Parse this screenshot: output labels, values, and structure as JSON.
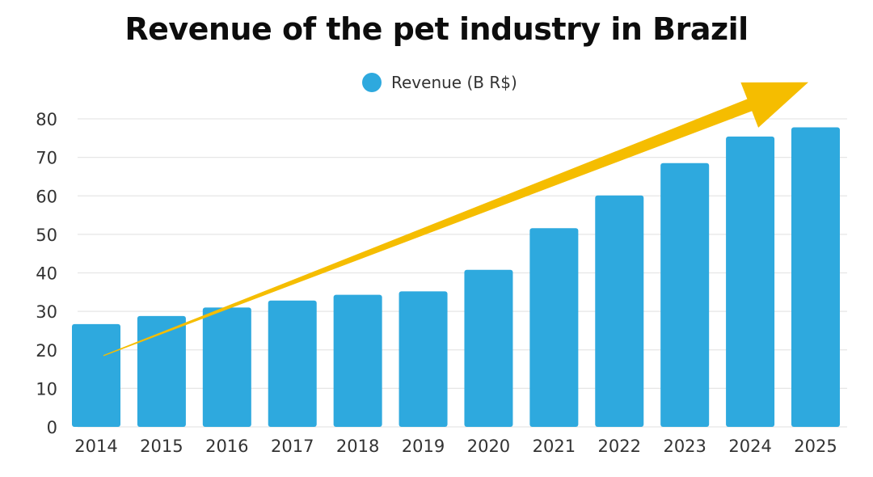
{
  "chart_data": {
    "type": "bar",
    "title": "Revenue of the pet industry in Brazil",
    "categories": [
      "2014",
      "2015",
      "2016",
      "2017",
      "2018",
      "2019",
      "2020",
      "2021",
      "2022",
      "2023",
      "2024",
      "2025"
    ],
    "series": [
      {
        "name": "Revenue (B R$)",
        "values": [
          26.7,
          28.8,
          31.0,
          32.8,
          34.3,
          35.2,
          40.8,
          51.6,
          60.1,
          68.5,
          75.4,
          77.8
        ]
      }
    ],
    "xlabel": "",
    "ylabel": "",
    "ylim": [
      0,
      80
    ],
    "yticks": [
      0,
      10,
      20,
      30,
      40,
      50,
      60,
      70,
      80
    ],
    "grid": true,
    "legend_position": "top-center",
    "annotation": {
      "type": "trend-arrow",
      "from": {
        "x": "2014",
        "y": 18.5
      },
      "to": {
        "x": "2025",
        "y": 89.5
      }
    }
  },
  "colors": {
    "bar": "#2ea9de",
    "arrow": "#f5bd00",
    "grid": "#e6e6e6",
    "tick_text": "#333333"
  }
}
